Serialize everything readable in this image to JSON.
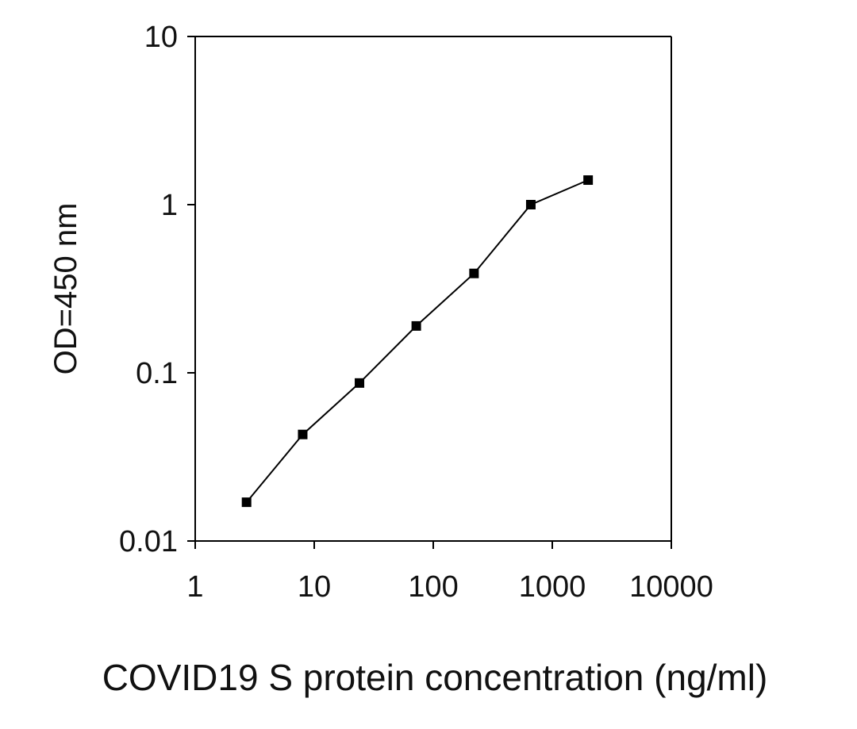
{
  "chart_data": {
    "type": "line",
    "title": "",
    "xlabel": "COVID19 S protein concentration (ng/ml)",
    "ylabel": "OD=450 nm",
    "x_scale": "log",
    "y_scale": "log",
    "xlim": [
      1,
      10000
    ],
    "ylim": [
      0.01,
      10
    ],
    "x_ticks": [
      1,
      10,
      100,
      1000,
      10000
    ],
    "x_tick_labels": [
      "1",
      "10",
      "100",
      "1000",
      "10000"
    ],
    "y_ticks": [
      0.01,
      0.1,
      1,
      10
    ],
    "y_tick_labels": [
      "0.01",
      "0.1",
      "1",
      "10"
    ],
    "grid": false,
    "legend": "none",
    "series": [
      {
        "x": [
          2.7,
          8,
          24,
          72,
          220,
          660,
          2000
        ],
        "y": [
          0.017,
          0.043,
          0.087,
          0.19,
          0.39,
          1.0,
          1.4
        ],
        "marker": "square",
        "color": "#000000"
      }
    ]
  }
}
